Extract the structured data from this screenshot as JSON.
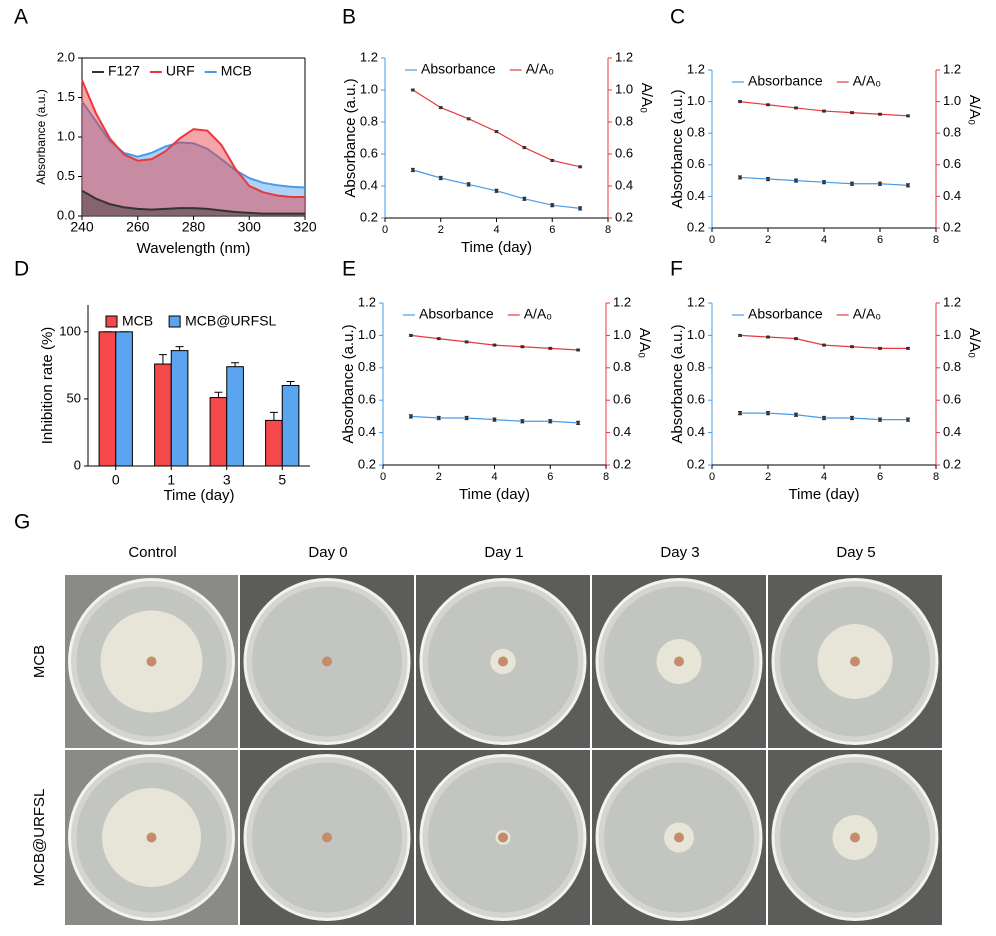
{
  "chart_data": [
    {
      "type": "area",
      "panel_label": "A",
      "xlabel": "Wavelength (nm)",
      "ylabel": "Absorbance (a.u.)",
      "x": [
        240,
        245,
        250,
        255,
        260,
        265,
        270,
        275,
        280,
        285,
        290,
        295,
        300,
        305,
        310,
        315,
        320
      ],
      "xlim": [
        240,
        320
      ],
      "xticks": [
        240,
        260,
        280,
        300,
        320
      ],
      "ylim": [
        0,
        2
      ],
      "yticks": [
        {
          "value": 0,
          "label": "0.0"
        },
        0.5,
        {
          "value": 1,
          "label": "1.0"
        },
        1.5,
        {
          "value": 2,
          "label": "2.0"
        }
      ],
      "frame": true,
      "series": [
        {
          "name": "F127",
          "color": "#333333",
          "values": [
            0.32,
            0.22,
            0.15,
            0.11,
            0.09,
            0.08,
            0.09,
            0.1,
            0.1,
            0.09,
            0.07,
            0.05,
            0.04,
            0.03,
            0.03,
            0.03,
            0.03
          ]
        },
        {
          "name": "URF",
          "color": "#e8383d",
          "values": [
            1.72,
            1.3,
            0.98,
            0.78,
            0.7,
            0.72,
            0.82,
            0.98,
            1.1,
            1.08,
            0.9,
            0.6,
            0.38,
            0.3,
            0.26,
            0.24,
            0.24
          ]
        },
        {
          "name": "MCB",
          "color": "#4a9be8",
          "values": [
            1.45,
            1.2,
            0.95,
            0.8,
            0.75,
            0.8,
            0.88,
            0.93,
            0.92,
            0.85,
            0.72,
            0.58,
            0.48,
            0.42,
            0.39,
            0.37,
            0.36
          ]
        }
      ]
    },
    {
      "type": "line",
      "panel_label": "B",
      "xlabel": "Time (day)",
      "ylabel": "Absorbance (a.u.)",
      "y2label": "A/A₀",
      "x": [
        1,
        2,
        3,
        4,
        5,
        6,
        7
      ],
      "xlim": [
        0,
        8
      ],
      "xticks": [
        0,
        2,
        4,
        6,
        8
      ],
      "ylim": [
        0.2,
        1.2
      ],
      "yticks": [
        0.2,
        0.4,
        0.6,
        0.8,
        {
          "value": 1,
          "label": "1.0"
        },
        1.2
      ],
      "y2lim": [
        0.2,
        1.2
      ],
      "y2ticks": [
        0.2,
        0.4,
        0.6,
        0.8,
        {
          "value": 1,
          "label": "1.0"
        },
        1.2
      ],
      "series": [
        {
          "name": "Absorbance",
          "color": "#4a9be8",
          "values": [
            0.5,
            0.45,
            0.41,
            0.37,
            0.32,
            0.28,
            0.26
          ],
          "errors": [
            0.01,
            0.01,
            0.01,
            0.01,
            0.01,
            0.01,
            0.01
          ]
        },
        {
          "name": "A/A₀",
          "color": "#e8383d",
          "axis": "y2",
          "values": [
            1.0,
            0.89,
            0.82,
            0.74,
            0.64,
            0.56,
            0.52
          ],
          "errors": [
            0.005,
            0.005,
            0.005,
            0.005,
            0.005,
            0.005,
            0.005
          ]
        }
      ]
    },
    {
      "type": "line",
      "panel_label": "C",
      "ylabel": "Absorbance (a.u.)",
      "y2label": "A/A₀",
      "x": [
        1,
        2,
        3,
        4,
        5,
        6,
        7
      ],
      "xlim": [
        0,
        8
      ],
      "xticks": [
        0,
        2,
        4,
        6,
        8
      ],
      "ylim": [
        0.2,
        1.2
      ],
      "yticks": [
        0.2,
        0.4,
        0.6,
        0.8,
        {
          "value": 1,
          "label": "1.0"
        },
        1.2
      ],
      "y2lim": [
        0.2,
        1.2
      ],
      "y2ticks": [
        0.2,
        0.4,
        0.6,
        0.8,
        {
          "value": 1,
          "label": "1.0"
        },
        1.2
      ],
      "series": [
        {
          "name": "Absorbance",
          "color": "#4a9be8",
          "values": [
            0.52,
            0.51,
            0.5,
            0.49,
            0.48,
            0.48,
            0.47
          ],
          "errors": [
            0.01,
            0.01,
            0.01,
            0.01,
            0.01,
            0.01,
            0.01
          ]
        },
        {
          "name": "A/A₀",
          "color": "#e8383d",
          "axis": "y2",
          "values": [
            1.0,
            0.98,
            0.96,
            0.94,
            0.93,
            0.92,
            0.91
          ],
          "errors": [
            0.005,
            0.005,
            0.005,
            0.005,
            0.005,
            0.005,
            0.005
          ]
        }
      ]
    },
    {
      "type": "bar",
      "panel_label": "D",
      "xlabel": "Time (day)",
      "ylabel": "Inhibition rate (%)",
      "categories": [
        "0",
        "1",
        "3",
        "5"
      ],
      "ylim": [
        0,
        120
      ],
      "yticks": [
        0,
        50,
        100
      ],
      "series": [
        {
          "name": "MCB",
          "color": "#f4484a",
          "values": [
            100,
            76,
            51,
            34
          ],
          "errors": [
            0,
            7,
            4,
            6
          ]
        },
        {
          "name": "MCB@URFSL",
          "color": "#5ba4f0",
          "values": [
            100,
            86,
            74,
            60
          ],
          "errors": [
            0,
            3,
            3,
            3
          ]
        }
      ]
    },
    {
      "type": "line",
      "panel_label": "E",
      "xlabel": "Time (day)",
      "ylabel": "Absorbance (a.u.)",
      "y2label": "A/A₀",
      "x": [
        1,
        2,
        3,
        4,
        5,
        6,
        7
      ],
      "xlim": [
        0,
        8
      ],
      "xticks": [
        0,
        2,
        4,
        6,
        8
      ],
      "ylim": [
        0.2,
        1.2
      ],
      "yticks": [
        0.2,
        0.4,
        0.6,
        0.8,
        {
          "value": 1,
          "label": "1.0"
        },
        1.2
      ],
      "y2lim": [
        0.2,
        1.2
      ],
      "y2ticks": [
        0.2,
        0.4,
        0.6,
        0.8,
        {
          "value": 1,
          "label": "1.0"
        },
        1.2
      ],
      "series": [
        {
          "name": "Absorbance",
          "color": "#4a9be8",
          "values": [
            0.5,
            0.49,
            0.49,
            0.48,
            0.47,
            0.47,
            0.46
          ],
          "errors": [
            0.01,
            0.01,
            0.01,
            0.01,
            0.01,
            0.01,
            0.01
          ]
        },
        {
          "name": "A/A₀",
          "color": "#e8383d",
          "axis": "y2",
          "values": [
            1.0,
            0.98,
            0.96,
            0.94,
            0.93,
            0.92,
            0.91
          ],
          "errors": [
            0.005,
            0.005,
            0.005,
            0.005,
            0.005,
            0.005,
            0.005
          ]
        }
      ]
    },
    {
      "type": "line",
      "panel_label": "F",
      "xlabel": "Time (day)",
      "ylabel": "Absorbance (a.u.)",
      "y2label": "A/A₀",
      "x": [
        1,
        2,
        3,
        4,
        5,
        6,
        7
      ],
      "xlim": [
        0,
        8
      ],
      "xticks": [
        0,
        2,
        4,
        6,
        8
      ],
      "ylim": [
        0.2,
        1.2
      ],
      "yticks": [
        0.2,
        0.4,
        0.6,
        0.8,
        {
          "value": 1,
          "label": "1.0"
        },
        1.2
      ],
      "y2lim": [
        0.2,
        1.2
      ],
      "y2ticks": [
        0.2,
        0.4,
        0.6,
        0.8,
        {
          "value": 1,
          "label": "1.0"
        },
        1.2
      ],
      "series": [
        {
          "name": "Absorbance",
          "color": "#4a9be8",
          "values": [
            0.52,
            0.52,
            0.51,
            0.49,
            0.49,
            0.48,
            0.48
          ],
          "errors": [
            0.01,
            0.01,
            0.01,
            0.01,
            0.01,
            0.01,
            0.01
          ]
        },
        {
          "name": "A/A₀",
          "color": "#e8383d",
          "axis": "y2",
          "values": [
            1.0,
            0.99,
            0.98,
            0.94,
            0.93,
            0.92,
            0.92
          ],
          "errors": [
            0.005,
            0.005,
            0.005,
            0.005,
            0.005,
            0.005,
            0.005
          ]
        }
      ]
    }
  ],
  "panel_g": {
    "label": "G",
    "columns": [
      "Control",
      "Day 0",
      "Day 1",
      "Day 3",
      "Day 5"
    ],
    "rows": [
      "MCB",
      "MCB@URFSL"
    ]
  }
}
